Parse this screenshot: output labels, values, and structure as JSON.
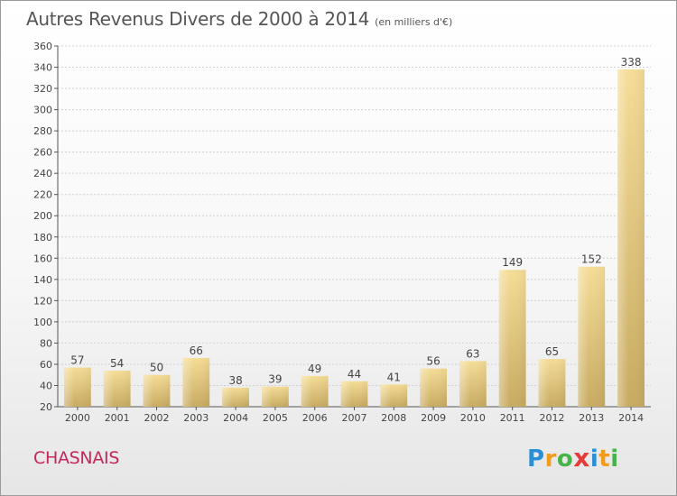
{
  "header": {
    "title": "Autres Revenus Divers de 2000 à 2014",
    "unit_note": "(en milliers d'€)"
  },
  "footer": {
    "commune": "CHASNAIS",
    "logo_text": "Proxiti"
  },
  "colors": {
    "bar_light": "#f5dd97",
    "bar_dark": "#c8ab62",
    "commune_text": "#c5275a",
    "grid": "#d0d0d0",
    "text": "#444444"
  },
  "chart_data": {
    "type": "bar",
    "title": "Autres Revenus Divers de 2000 à 2014",
    "subtitle": "(en milliers d'€)",
    "xlabel": "",
    "ylabel": "",
    "categories": [
      "2000",
      "2001",
      "2002",
      "2003",
      "2004",
      "2005",
      "2006",
      "2007",
      "2008",
      "2009",
      "2010",
      "2011",
      "2012",
      "2013",
      "2014"
    ],
    "values": [
      57,
      54,
      50,
      66,
      38,
      39,
      49,
      44,
      41,
      56,
      63,
      149,
      65,
      152,
      338
    ],
    "ylim": [
      20,
      360
    ],
    "yticks": [
      20,
      40,
      60,
      80,
      100,
      120,
      140,
      160,
      180,
      200,
      220,
      240,
      260,
      280,
      300,
      320,
      340,
      360
    ],
    "grid": true,
    "legend": "none"
  }
}
